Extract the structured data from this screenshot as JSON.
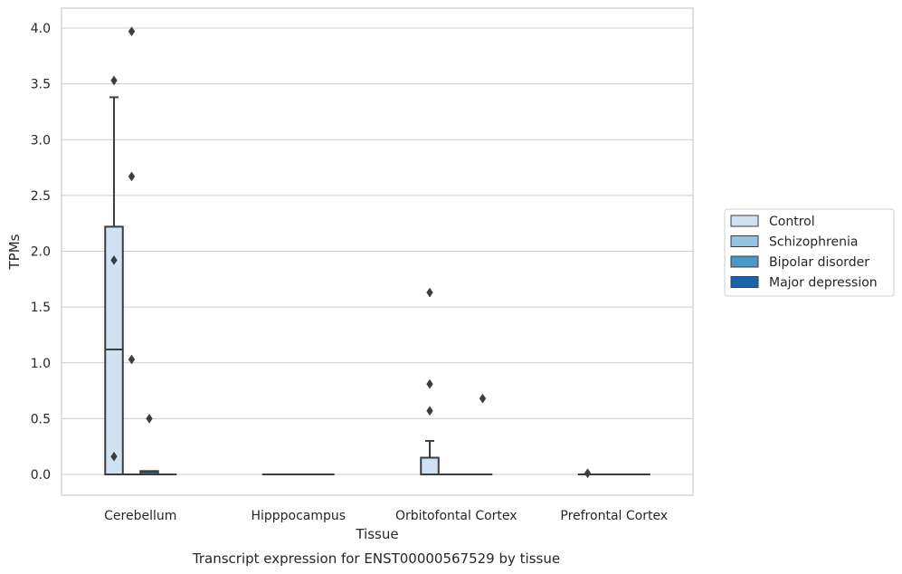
{
  "chart_data": {
    "type": "box",
    "xlabel": "Tissue",
    "ylabel": "TPMs",
    "caption": "Transcript expression for ENST00000567529 by tissue",
    "ylim": [
      -0.19,
      4.18
    ],
    "yticks": [
      "0.0",
      "0.5",
      "1.0",
      "1.5",
      "2.0",
      "2.5",
      "3.0",
      "3.5",
      "4.0"
    ],
    "categories": [
      "Cerebellum",
      "Hipppocampus",
      "Orbitofontal Cortex",
      "Prefrontal Cortex"
    ],
    "grid": true,
    "legend_position": "right",
    "series": [
      {
        "name": "Control",
        "color": "#d0e1f2",
        "boxes": [
          {
            "q1": 0.0,
            "median": 1.12,
            "q3": 2.22,
            "whisker_low": 0.0,
            "whisker_high": 3.38,
            "outliers": [
              3.53,
              1.92,
              0.16
            ]
          },
          {
            "q1": 0.0,
            "median": 0.0,
            "q3": 0.0,
            "whisker_low": 0.0,
            "whisker_high": 0.0,
            "outliers": []
          },
          {
            "q1": 0.0,
            "median": 0.0,
            "q3": 0.15,
            "whisker_low": 0.0,
            "whisker_high": 0.3,
            "outliers": [
              1.63,
              0.81,
              0.57
            ]
          },
          {
            "q1": 0.0,
            "median": 0.0,
            "q3": 0.0,
            "whisker_low": 0.0,
            "whisker_high": 0.0,
            "outliers": [
              0.01
            ]
          }
        ]
      },
      {
        "name": "Schizophrenia",
        "color": "#94c4df",
        "boxes": [
          {
            "q1": 0.0,
            "median": 0.0,
            "q3": 0.0,
            "whisker_low": 0.0,
            "whisker_high": 0.0,
            "outliers": [
              3.97,
              2.67,
              1.03
            ]
          },
          {
            "q1": 0.0,
            "median": 0.0,
            "q3": 0.0,
            "whisker_low": 0.0,
            "whisker_high": 0.0,
            "outliers": []
          },
          {
            "q1": 0.0,
            "median": 0.0,
            "q3": 0.0,
            "whisker_low": 0.0,
            "whisker_high": 0.0,
            "outliers": []
          },
          {
            "q1": 0.0,
            "median": 0.0,
            "q3": 0.0,
            "whisker_low": 0.0,
            "whisker_high": 0.0,
            "outliers": []
          }
        ]
      },
      {
        "name": "Bipolar disorder",
        "color": "#4a98c9",
        "boxes": [
          {
            "q1": 0.0,
            "median": 0.02,
            "q3": 0.03,
            "whisker_low": 0.0,
            "whisker_high": 0.03,
            "outliers": [
              0.5
            ]
          },
          {
            "q1": 0.0,
            "median": 0.0,
            "q3": 0.0,
            "whisker_low": 0.0,
            "whisker_high": 0.0,
            "outliers": []
          },
          {
            "q1": 0.0,
            "median": 0.0,
            "q3": 0.0,
            "whisker_low": 0.0,
            "whisker_high": 0.0,
            "outliers": []
          },
          {
            "q1": 0.0,
            "median": 0.0,
            "q3": 0.0,
            "whisker_low": 0.0,
            "whisker_high": 0.0,
            "outliers": []
          }
        ]
      },
      {
        "name": "Major depression",
        "color": "#1764ab",
        "boxes": [
          {
            "q1": 0.0,
            "median": 0.0,
            "q3": 0.0,
            "whisker_low": 0.0,
            "whisker_high": 0.0,
            "outliers": []
          },
          {
            "q1": 0.0,
            "median": 0.0,
            "q3": 0.0,
            "whisker_low": 0.0,
            "whisker_high": 0.0,
            "outliers": []
          },
          {
            "q1": 0.0,
            "median": 0.0,
            "q3": 0.0,
            "whisker_low": 0.0,
            "whisker_high": 0.0,
            "outliers": [
              0.68
            ]
          },
          {
            "q1": 0.0,
            "median": 0.0,
            "q3": 0.0,
            "whisker_low": 0.0,
            "whisker_high": 0.0,
            "outliers": []
          }
        ]
      }
    ]
  }
}
